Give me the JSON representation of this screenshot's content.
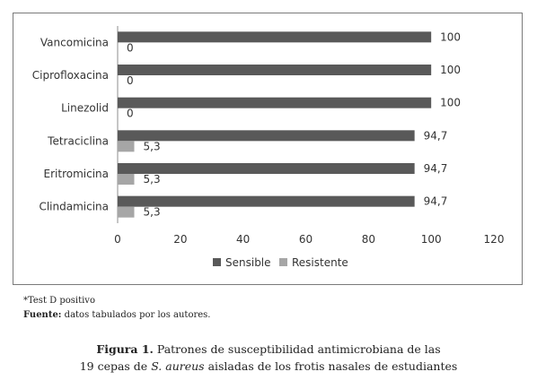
{
  "chart_data": {
    "type": "bar",
    "orientation": "horizontal",
    "categories": [
      "Vancomicina",
      "Ciprofloxacina",
      "Linezolid",
      "Tetraciclina",
      "Eritromicina",
      "Clindamicina"
    ],
    "series": [
      {
        "name": "Sensible",
        "values": [
          100,
          100,
          100,
          94.7,
          94.7,
          94.7
        ],
        "labels": [
          "100",
          "100",
          "100",
          "94,7",
          "94,7",
          "94,7"
        ],
        "color": "#595959"
      },
      {
        "name": "Resistente",
        "values": [
          0,
          0,
          0,
          5.3,
          5.3,
          5.3
        ],
        "labels": [
          "0",
          "0",
          "0",
          "5,3",
          "5,3",
          "5,3"
        ],
        "color": "#a6a6a6"
      }
    ],
    "xlim": [
      0,
      120
    ],
    "xticks": [
      "0",
      "20",
      "40",
      "60",
      "80",
      "100",
      "120"
    ],
    "grid": false,
    "legend_position": "bottom",
    "title": "",
    "xlabel": "",
    "ylabel": ""
  },
  "notes": {
    "test": "*Test D positivo",
    "source_label": "Fuente:",
    "source_text": " datos tabulados por los autores."
  },
  "caption": {
    "label": "Figura 1.",
    "line1_text": " Patrones de susceptibilidad antimicrobiana de las",
    "line2_before": "19 cepas de ",
    "line2_italic": "S. aureus",
    "line2_after": " aisladas de los frotis nasales de estudiantes"
  }
}
